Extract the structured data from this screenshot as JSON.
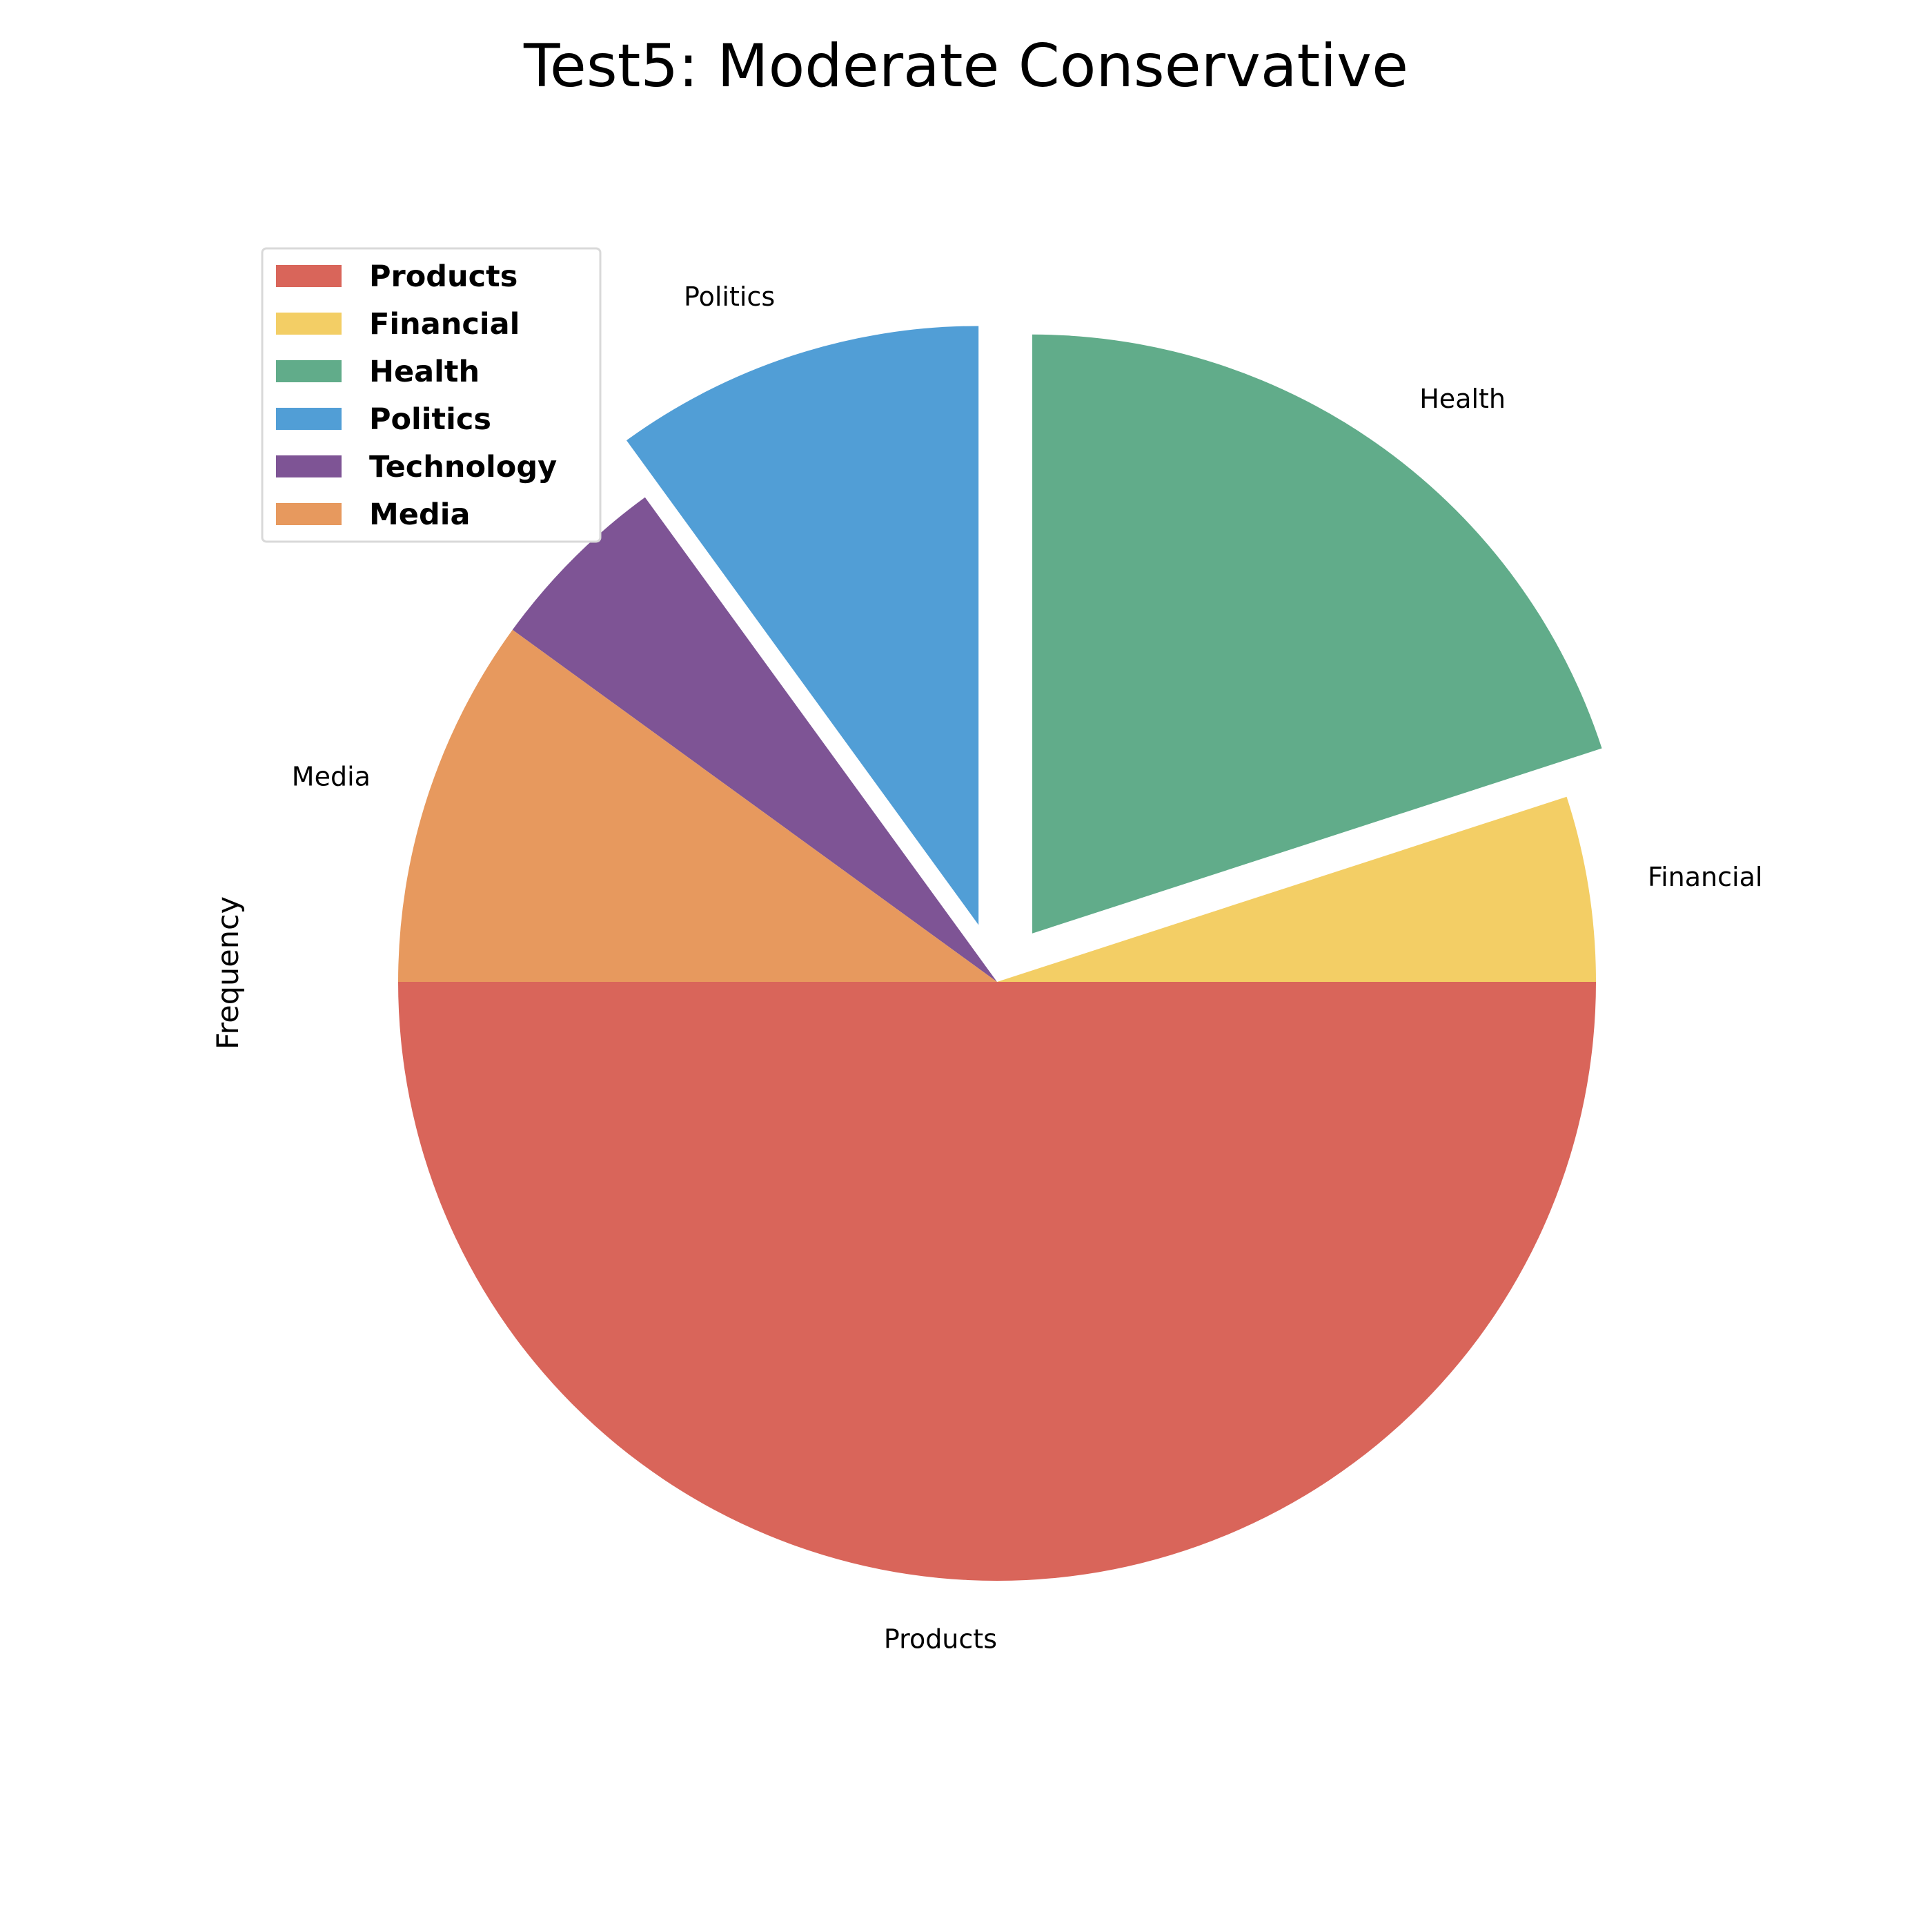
{
  "chart_data": {
    "type": "pie",
    "title": "Test5: Moderate Conservative",
    "ylabel": "Frequency",
    "legend_position": "upper-left",
    "start_angle_deg": 180,
    "direction": "counterclockwise",
    "slices": [
      {
        "label": "Products",
        "value": 50,
        "color": "#D9655A",
        "exploded": false
      },
      {
        "label": "Financial",
        "value": 5,
        "color": "#F3CE65",
        "exploded": false
      },
      {
        "label": "Health",
        "value": 20,
        "color": "#61AC8A",
        "exploded": true
      },
      {
        "label": "Politics",
        "value": 10,
        "color": "#519ED6",
        "exploded": true
      },
      {
        "label": "Technology",
        "value": 5,
        "color": "#7E5495",
        "exploded": false
      },
      {
        "label": "Media",
        "value": 10,
        "color": "#E7995E",
        "exploded": false
      }
    ]
  }
}
